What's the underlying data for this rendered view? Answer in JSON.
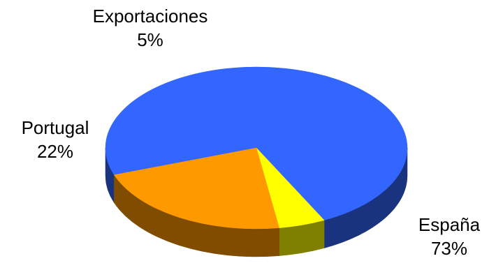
{
  "chart_data": {
    "type": "pie",
    "style": "3d",
    "slices": [
      {
        "label": "España",
        "value": 73,
        "value_label": "73%",
        "color": "#3366FF",
        "side_color": "#1A337F"
      },
      {
        "label": "Portugal",
        "value": 22,
        "value_label": "22%",
        "color": "#FF9900",
        "side_color": "#804C00"
      },
      {
        "label": "Exportaciones",
        "value": 5,
        "value_label": "5%",
        "color": "#FFFF00",
        "side_color": "#808000"
      }
    ],
    "legend": "none",
    "labels": "outside"
  }
}
